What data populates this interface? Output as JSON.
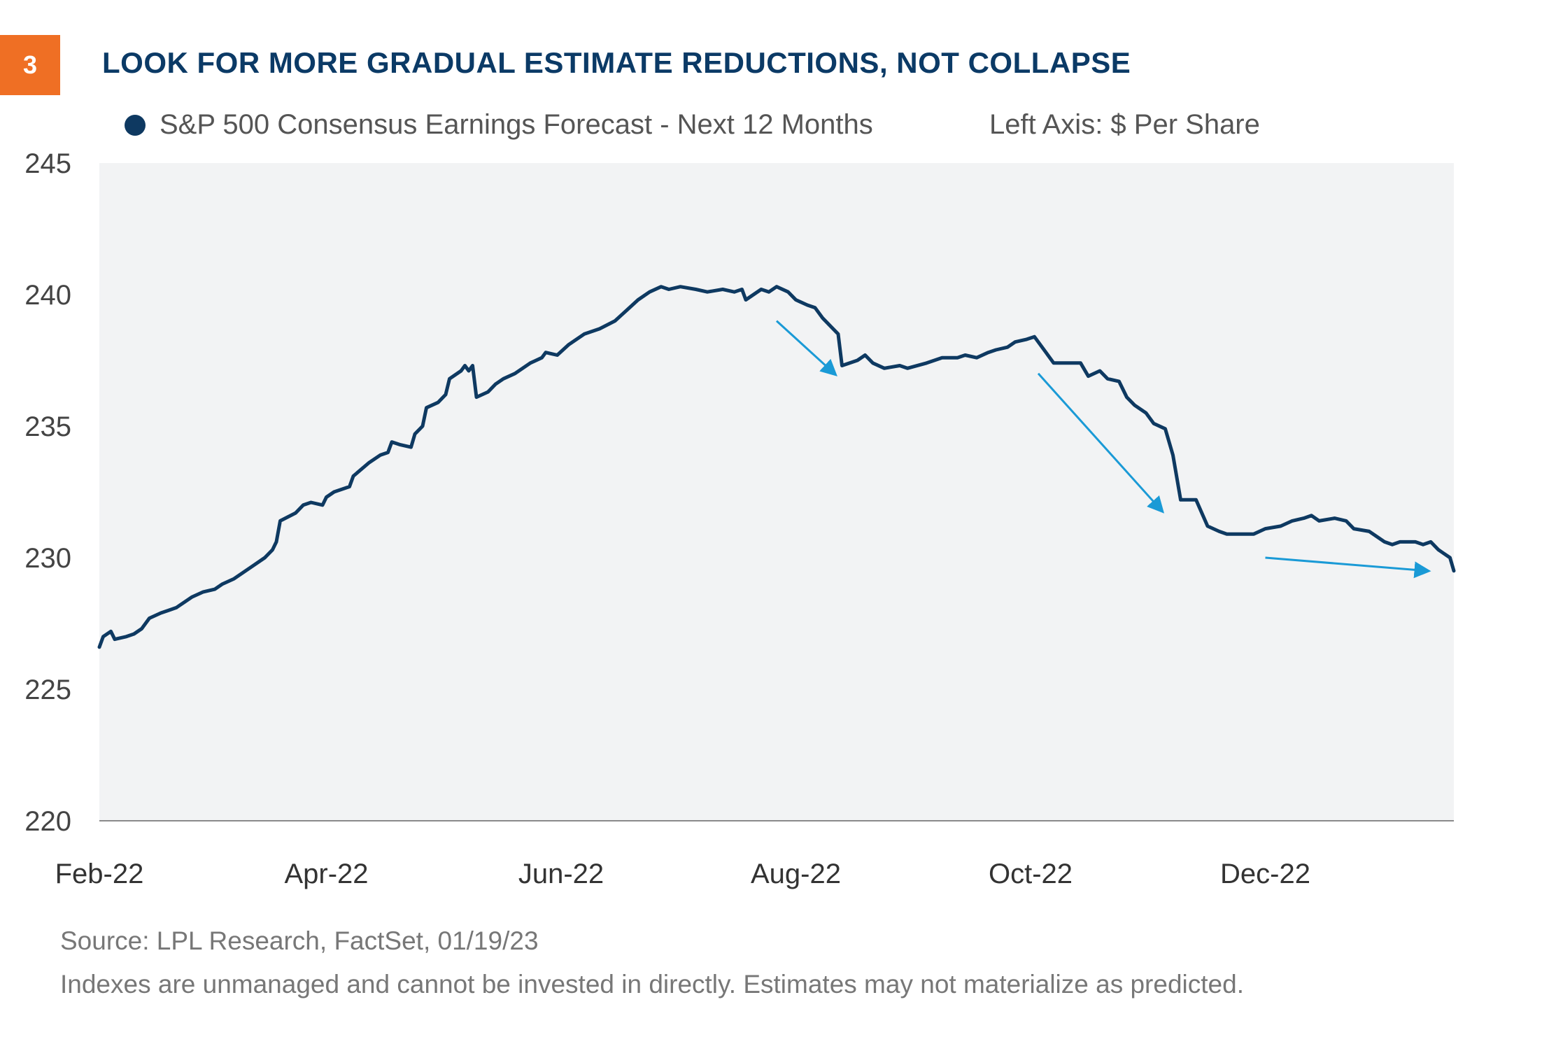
{
  "badge": "3",
  "title": "LOOK FOR MORE GRADUAL ESTIMATE REDUCTIONS, NOT COLLAPSE",
  "legend_label": "S&P 500 Consensus Earnings Forecast - Next 12 Months",
  "axis_note": "Left Axis: $ Per Share",
  "source": "Source: LPL Research, FactSet,  01/19/23",
  "disclaimer": "Indexes are unmanaged and cannot be invested in directly. Estimates may not materialize as predicted.",
  "colors": {
    "line": "#0e3961",
    "arrow": "#1a9ad6",
    "plot_bg": "#f2f3f4",
    "badge": "#ef6f24",
    "title": "#0b3a66"
  },
  "chart_data": {
    "type": "line",
    "ylim": [
      220,
      245
    ],
    "yticks": [
      245,
      240,
      235,
      230,
      225,
      220
    ],
    "x_range": [
      "2022-02-01",
      "2023-01-19"
    ],
    "x_ticks": [
      {
        "date": "2022-02-01",
        "label": "Feb-22"
      },
      {
        "date": "2022-04-01",
        "label": "Apr-22"
      },
      {
        "date": "2022-06-01",
        "label": "Jun-22"
      },
      {
        "date": "2022-08-01",
        "label": "Aug-22"
      },
      {
        "date": "2022-10-01",
        "label": "Oct-22"
      },
      {
        "date": "2022-12-01",
        "label": "Dec-22"
      }
    ],
    "grid": false,
    "series": [
      {
        "name": "S&P 500 Consensus Earnings Forecast - Next 12 Months",
        "points": [
          [
            "2022-02-01",
            226.6
          ],
          [
            "2022-02-02",
            227.0
          ],
          [
            "2022-02-04",
            227.2
          ],
          [
            "2022-02-05",
            226.9
          ],
          [
            "2022-02-08",
            227.0
          ],
          [
            "2022-02-10",
            227.1
          ],
          [
            "2022-02-12",
            227.3
          ],
          [
            "2022-02-14",
            227.7
          ],
          [
            "2022-02-17",
            227.9
          ],
          [
            "2022-02-19",
            228.0
          ],
          [
            "2022-02-21",
            228.1
          ],
          [
            "2022-02-23",
            228.3
          ],
          [
            "2022-02-25",
            228.5
          ],
          [
            "2022-02-28",
            228.7
          ],
          [
            "2022-03-03",
            228.8
          ],
          [
            "2022-03-05",
            229.0
          ],
          [
            "2022-03-08",
            229.2
          ],
          [
            "2022-03-10",
            229.4
          ],
          [
            "2022-03-13",
            229.7
          ],
          [
            "2022-03-16",
            230.0
          ],
          [
            "2022-03-18",
            230.3
          ],
          [
            "2022-03-19",
            230.6
          ],
          [
            "2022-03-20",
            231.4
          ],
          [
            "2022-03-24",
            231.7
          ],
          [
            "2022-03-26",
            232.0
          ],
          [
            "2022-03-28",
            232.1
          ],
          [
            "2022-03-31",
            232.0
          ],
          [
            "2022-04-01",
            232.3
          ],
          [
            "2022-04-03",
            232.5
          ],
          [
            "2022-04-05",
            232.6
          ],
          [
            "2022-04-07",
            232.7
          ],
          [
            "2022-04-08",
            233.1
          ],
          [
            "2022-04-12",
            233.6
          ],
          [
            "2022-04-15",
            233.9
          ],
          [
            "2022-04-17",
            234.0
          ],
          [
            "2022-04-18",
            234.4
          ],
          [
            "2022-04-20",
            234.3
          ],
          [
            "2022-04-23",
            234.2
          ],
          [
            "2022-04-24",
            234.7
          ],
          [
            "2022-04-26",
            235.0
          ],
          [
            "2022-04-27",
            235.7
          ],
          [
            "2022-04-30",
            235.9
          ],
          [
            "2022-05-02",
            236.2
          ],
          [
            "2022-05-03",
            236.8
          ],
          [
            "2022-05-06",
            237.1
          ],
          [
            "2022-05-07",
            237.3
          ],
          [
            "2022-05-08",
            237.1
          ],
          [
            "2022-05-09",
            237.3
          ],
          [
            "2022-05-10",
            236.1
          ],
          [
            "2022-05-13",
            236.3
          ],
          [
            "2022-05-15",
            236.6
          ],
          [
            "2022-05-17",
            236.8
          ],
          [
            "2022-05-20",
            237.0
          ],
          [
            "2022-05-22",
            237.2
          ],
          [
            "2022-05-24",
            237.4
          ],
          [
            "2022-05-27",
            237.6
          ],
          [
            "2022-05-28",
            237.8
          ],
          [
            "2022-05-31",
            237.7
          ],
          [
            "2022-06-03",
            238.1
          ],
          [
            "2022-06-05",
            238.3
          ],
          [
            "2022-06-07",
            238.5
          ],
          [
            "2022-06-11",
            238.7
          ],
          [
            "2022-06-15",
            239.0
          ],
          [
            "2022-06-18",
            239.4
          ],
          [
            "2022-06-21",
            239.8
          ],
          [
            "2022-06-24",
            240.1
          ],
          [
            "2022-06-27",
            240.3
          ],
          [
            "2022-06-29",
            240.2
          ],
          [
            "2022-07-02",
            240.3
          ],
          [
            "2022-07-06",
            240.2
          ],
          [
            "2022-07-09",
            240.1
          ],
          [
            "2022-07-13",
            240.2
          ],
          [
            "2022-07-16",
            240.1
          ],
          [
            "2022-07-18",
            240.2
          ],
          [
            "2022-07-19",
            239.8
          ],
          [
            "2022-07-23",
            240.2
          ],
          [
            "2022-07-25",
            240.1
          ],
          [
            "2022-07-27",
            240.3
          ],
          [
            "2022-07-30",
            240.1
          ],
          [
            "2022-08-01",
            239.8
          ],
          [
            "2022-08-04",
            239.6
          ],
          [
            "2022-08-06",
            239.5
          ],
          [
            "2022-08-08",
            239.1
          ],
          [
            "2022-08-12",
            238.5
          ],
          [
            "2022-08-13",
            237.3
          ],
          [
            "2022-08-17",
            237.5
          ],
          [
            "2022-08-19",
            237.7
          ],
          [
            "2022-08-21",
            237.4
          ],
          [
            "2022-08-24",
            237.2
          ],
          [
            "2022-08-28",
            237.3
          ],
          [
            "2022-08-30",
            237.2
          ],
          [
            "2022-09-04",
            237.4
          ],
          [
            "2022-09-08",
            237.6
          ],
          [
            "2022-09-12",
            237.6
          ],
          [
            "2022-09-14",
            237.7
          ],
          [
            "2022-09-17",
            237.6
          ],
          [
            "2022-09-20",
            237.8
          ],
          [
            "2022-09-22",
            237.9
          ],
          [
            "2022-09-25",
            238.0
          ],
          [
            "2022-09-27",
            238.2
          ],
          [
            "2022-09-30",
            238.3
          ],
          [
            "2022-10-02",
            238.4
          ],
          [
            "2022-10-05",
            237.8
          ],
          [
            "2022-10-07",
            237.4
          ],
          [
            "2022-10-10",
            237.4
          ],
          [
            "2022-10-14",
            237.4
          ],
          [
            "2022-10-16",
            236.9
          ],
          [
            "2022-10-19",
            237.1
          ],
          [
            "2022-10-21",
            236.8
          ],
          [
            "2022-10-24",
            236.7
          ],
          [
            "2022-10-26",
            236.1
          ],
          [
            "2022-10-28",
            235.8
          ],
          [
            "2022-10-31",
            235.5
          ],
          [
            "2022-11-02",
            235.1
          ],
          [
            "2022-11-05",
            234.9
          ],
          [
            "2022-11-07",
            233.9
          ],
          [
            "2022-11-09",
            232.2
          ],
          [
            "2022-11-13",
            232.2
          ],
          [
            "2022-11-16",
            231.2
          ],
          [
            "2022-11-19",
            231.0
          ],
          [
            "2022-11-21",
            230.9
          ],
          [
            "2022-11-28",
            230.9
          ],
          [
            "2022-12-01",
            231.1
          ],
          [
            "2022-12-05",
            231.2
          ],
          [
            "2022-12-08",
            231.4
          ],
          [
            "2022-12-11",
            231.5
          ],
          [
            "2022-12-13",
            231.6
          ],
          [
            "2022-12-15",
            231.4
          ],
          [
            "2022-12-19",
            231.5
          ],
          [
            "2022-12-22",
            231.4
          ],
          [
            "2022-12-24",
            231.1
          ],
          [
            "2022-12-28",
            231.0
          ],
          [
            "2023-01-01",
            230.6
          ],
          [
            "2023-01-03",
            230.5
          ],
          [
            "2023-01-05",
            230.6
          ],
          [
            "2023-01-09",
            230.6
          ],
          [
            "2023-01-11",
            230.5
          ],
          [
            "2023-01-13",
            230.6
          ],
          [
            "2023-01-15",
            230.3
          ],
          [
            "2023-01-16",
            230.2
          ],
          [
            "2023-01-18",
            230.0
          ],
          [
            "2023-01-19",
            229.5
          ]
        ]
      }
    ],
    "annotations": [
      {
        "type": "arrow",
        "from": [
          "2022-07-27",
          239.0
        ],
        "to": [
          "2022-08-11",
          237.0
        ]
      },
      {
        "type": "arrow",
        "from": [
          "2022-10-03",
          237.0
        ],
        "to": [
          "2022-11-04",
          231.8
        ]
      },
      {
        "type": "arrow",
        "from": [
          "2022-12-01",
          230.0
        ],
        "to": [
          "2023-01-12",
          229.5
        ]
      }
    ]
  }
}
